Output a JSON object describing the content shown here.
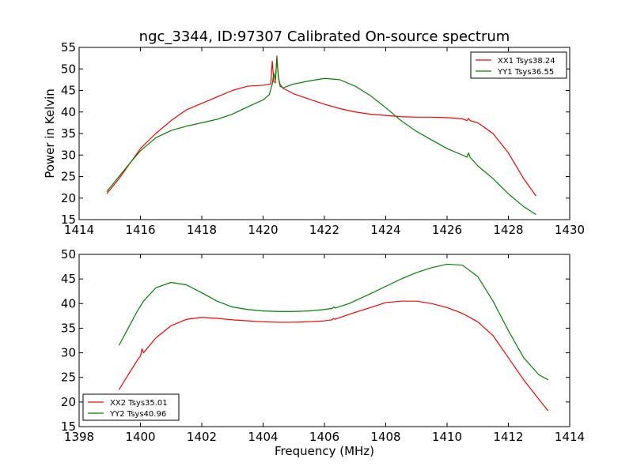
{
  "chart_data": [
    {
      "type": "line",
      "title": "ngc_3344, ID:97307 Calibrated On-source spectrum",
      "xlabel": "",
      "ylabel": "Power in Kelvin",
      "xlim": [
        1414,
        1430
      ],
      "ylim": [
        15,
        55
      ],
      "xticks": [
        "1414",
        "1416",
        "1418",
        "1420",
        "1422",
        "1424",
        "1426",
        "1428",
        "1430"
      ],
      "yticks": [
        "15",
        "20",
        "25",
        "30",
        "35",
        "40",
        "45",
        "50",
        "55"
      ],
      "grid": false,
      "legend_position": "top-right",
      "series": [
        {
          "name": "XX1 Tsys38.24",
          "color": "#ff0000",
          "x": [
            1414.9,
            1415.3,
            1415.7,
            1416.0,
            1416.5,
            1417.0,
            1417.5,
            1418.0,
            1418.5,
            1419.0,
            1419.5,
            1420.0,
            1420.25,
            1420.3,
            1420.35,
            1420.4,
            1420.45,
            1420.5,
            1420.55,
            1420.65,
            1420.8,
            1421.0,
            1421.5,
            1422.0,
            1422.5,
            1423.0,
            1423.5,
            1424.0,
            1424.5,
            1425.0,
            1425.5,
            1426.0,
            1426.5,
            1426.65,
            1426.7,
            1426.75,
            1427.0,
            1427.5,
            1428.0,
            1428.5,
            1428.9
          ],
          "y": [
            21.0,
            24.5,
            28.5,
            31.5,
            35.0,
            38.0,
            40.5,
            42.0,
            43.5,
            45.0,
            46.0,
            46.2,
            46.5,
            51.8,
            47.0,
            46.8,
            53.0,
            48.0,
            46.5,
            45.5,
            45.0,
            44.2,
            43.0,
            41.8,
            40.8,
            40.0,
            39.5,
            39.2,
            38.9,
            38.8,
            38.8,
            38.7,
            38.4,
            38.0,
            38.5,
            38.0,
            37.5,
            35.0,
            30.5,
            24.5,
            20.5
          ]
        },
        {
          "name": "YY1 Tsys36.55",
          "color": "#008000",
          "x": [
            1414.9,
            1415.3,
            1415.7,
            1416.0,
            1416.5,
            1417.0,
            1417.5,
            1418.0,
            1418.5,
            1419.0,
            1419.5,
            1420.0,
            1420.2,
            1420.3,
            1420.35,
            1420.4,
            1420.45,
            1420.5,
            1420.55,
            1420.65,
            1420.8,
            1421.0,
            1421.5,
            1422.0,
            1422.5,
            1423.0,
            1423.5,
            1424.0,
            1424.5,
            1425.0,
            1425.5,
            1426.0,
            1426.5,
            1426.65,
            1426.7,
            1426.75,
            1427.0,
            1427.5,
            1428.0,
            1428.5,
            1428.9
          ],
          "y": [
            21.5,
            25.0,
            28.5,
            31.0,
            34.0,
            35.7,
            36.7,
            37.5,
            38.3,
            39.5,
            41.2,
            42.8,
            44.0,
            46.5,
            49.0,
            47.5,
            52.5,
            48.0,
            46.0,
            45.6,
            46.0,
            46.5,
            47.2,
            47.8,
            47.5,
            46.0,
            43.8,
            41.0,
            38.0,
            35.5,
            33.5,
            31.5,
            30.0,
            29.5,
            30.5,
            29.5,
            27.5,
            24.5,
            21.0,
            18.0,
            16.2
          ]
        }
      ]
    },
    {
      "type": "line",
      "title": "",
      "xlabel": "Frequency (MHz)",
      "ylabel": "",
      "xlim": [
        1398,
        1414
      ],
      "ylim": [
        15,
        50
      ],
      "xticks": [
        "1398",
        "1400",
        "1402",
        "1404",
        "1406",
        "1408",
        "1410",
        "1412",
        "1414"
      ],
      "yticks": [
        "15",
        "20",
        "25",
        "30",
        "35",
        "40",
        "45",
        "50"
      ],
      "grid": false,
      "legend_position": "bottom-left",
      "series": [
        {
          "name": "XX2 Tsys35.01",
          "color": "#ff0000",
          "x": [
            1399.3,
            1399.6,
            1399.9,
            1400.0,
            1400.05,
            1400.1,
            1400.5,
            1401.0,
            1401.5,
            1402.0,
            1402.5,
            1403.0,
            1403.5,
            1404.0,
            1404.5,
            1405.0,
            1405.5,
            1406.0,
            1406.25,
            1406.3,
            1406.35,
            1406.8,
            1407.5,
            1408.0,
            1408.5,
            1409.0,
            1409.5,
            1410.0,
            1410.5,
            1411.0,
            1411.5,
            1412.0,
            1412.5,
            1413.0,
            1413.3
          ],
          "y": [
            22.5,
            25.5,
            28.5,
            29.3,
            30.8,
            30.0,
            33.0,
            35.5,
            36.8,
            37.2,
            37.0,
            36.7,
            36.5,
            36.3,
            36.2,
            36.2,
            36.3,
            36.5,
            36.7,
            37.0,
            36.8,
            37.8,
            39.2,
            40.2,
            40.5,
            40.5,
            40.0,
            39.2,
            38.0,
            36.3,
            33.5,
            29.0,
            24.5,
            20.5,
            18.2
          ]
        },
        {
          "name": "YY2 Tsys40.96",
          "color": "#008000",
          "x": [
            1399.3,
            1399.6,
            1399.9,
            1400.1,
            1400.5,
            1401.0,
            1401.5,
            1402.0,
            1402.5,
            1403.0,
            1403.5,
            1404.0,
            1404.5,
            1405.0,
            1405.5,
            1406.0,
            1406.25,
            1406.3,
            1406.35,
            1406.8,
            1407.5,
            1408.0,
            1408.5,
            1409.0,
            1409.5,
            1410.0,
            1410.5,
            1411.0,
            1411.5,
            1412.0,
            1412.5,
            1413.0,
            1413.3
          ],
          "y": [
            31.5,
            35.0,
            38.5,
            40.5,
            43.2,
            44.3,
            43.8,
            42.2,
            40.5,
            39.3,
            38.8,
            38.5,
            38.4,
            38.4,
            38.5,
            38.8,
            39.0,
            39.3,
            39.1,
            40.0,
            42.0,
            43.5,
            45.0,
            46.3,
            47.3,
            48.0,
            47.8,
            45.5,
            40.5,
            34.5,
            29.0,
            25.5,
            24.5
          ]
        }
      ]
    }
  ]
}
